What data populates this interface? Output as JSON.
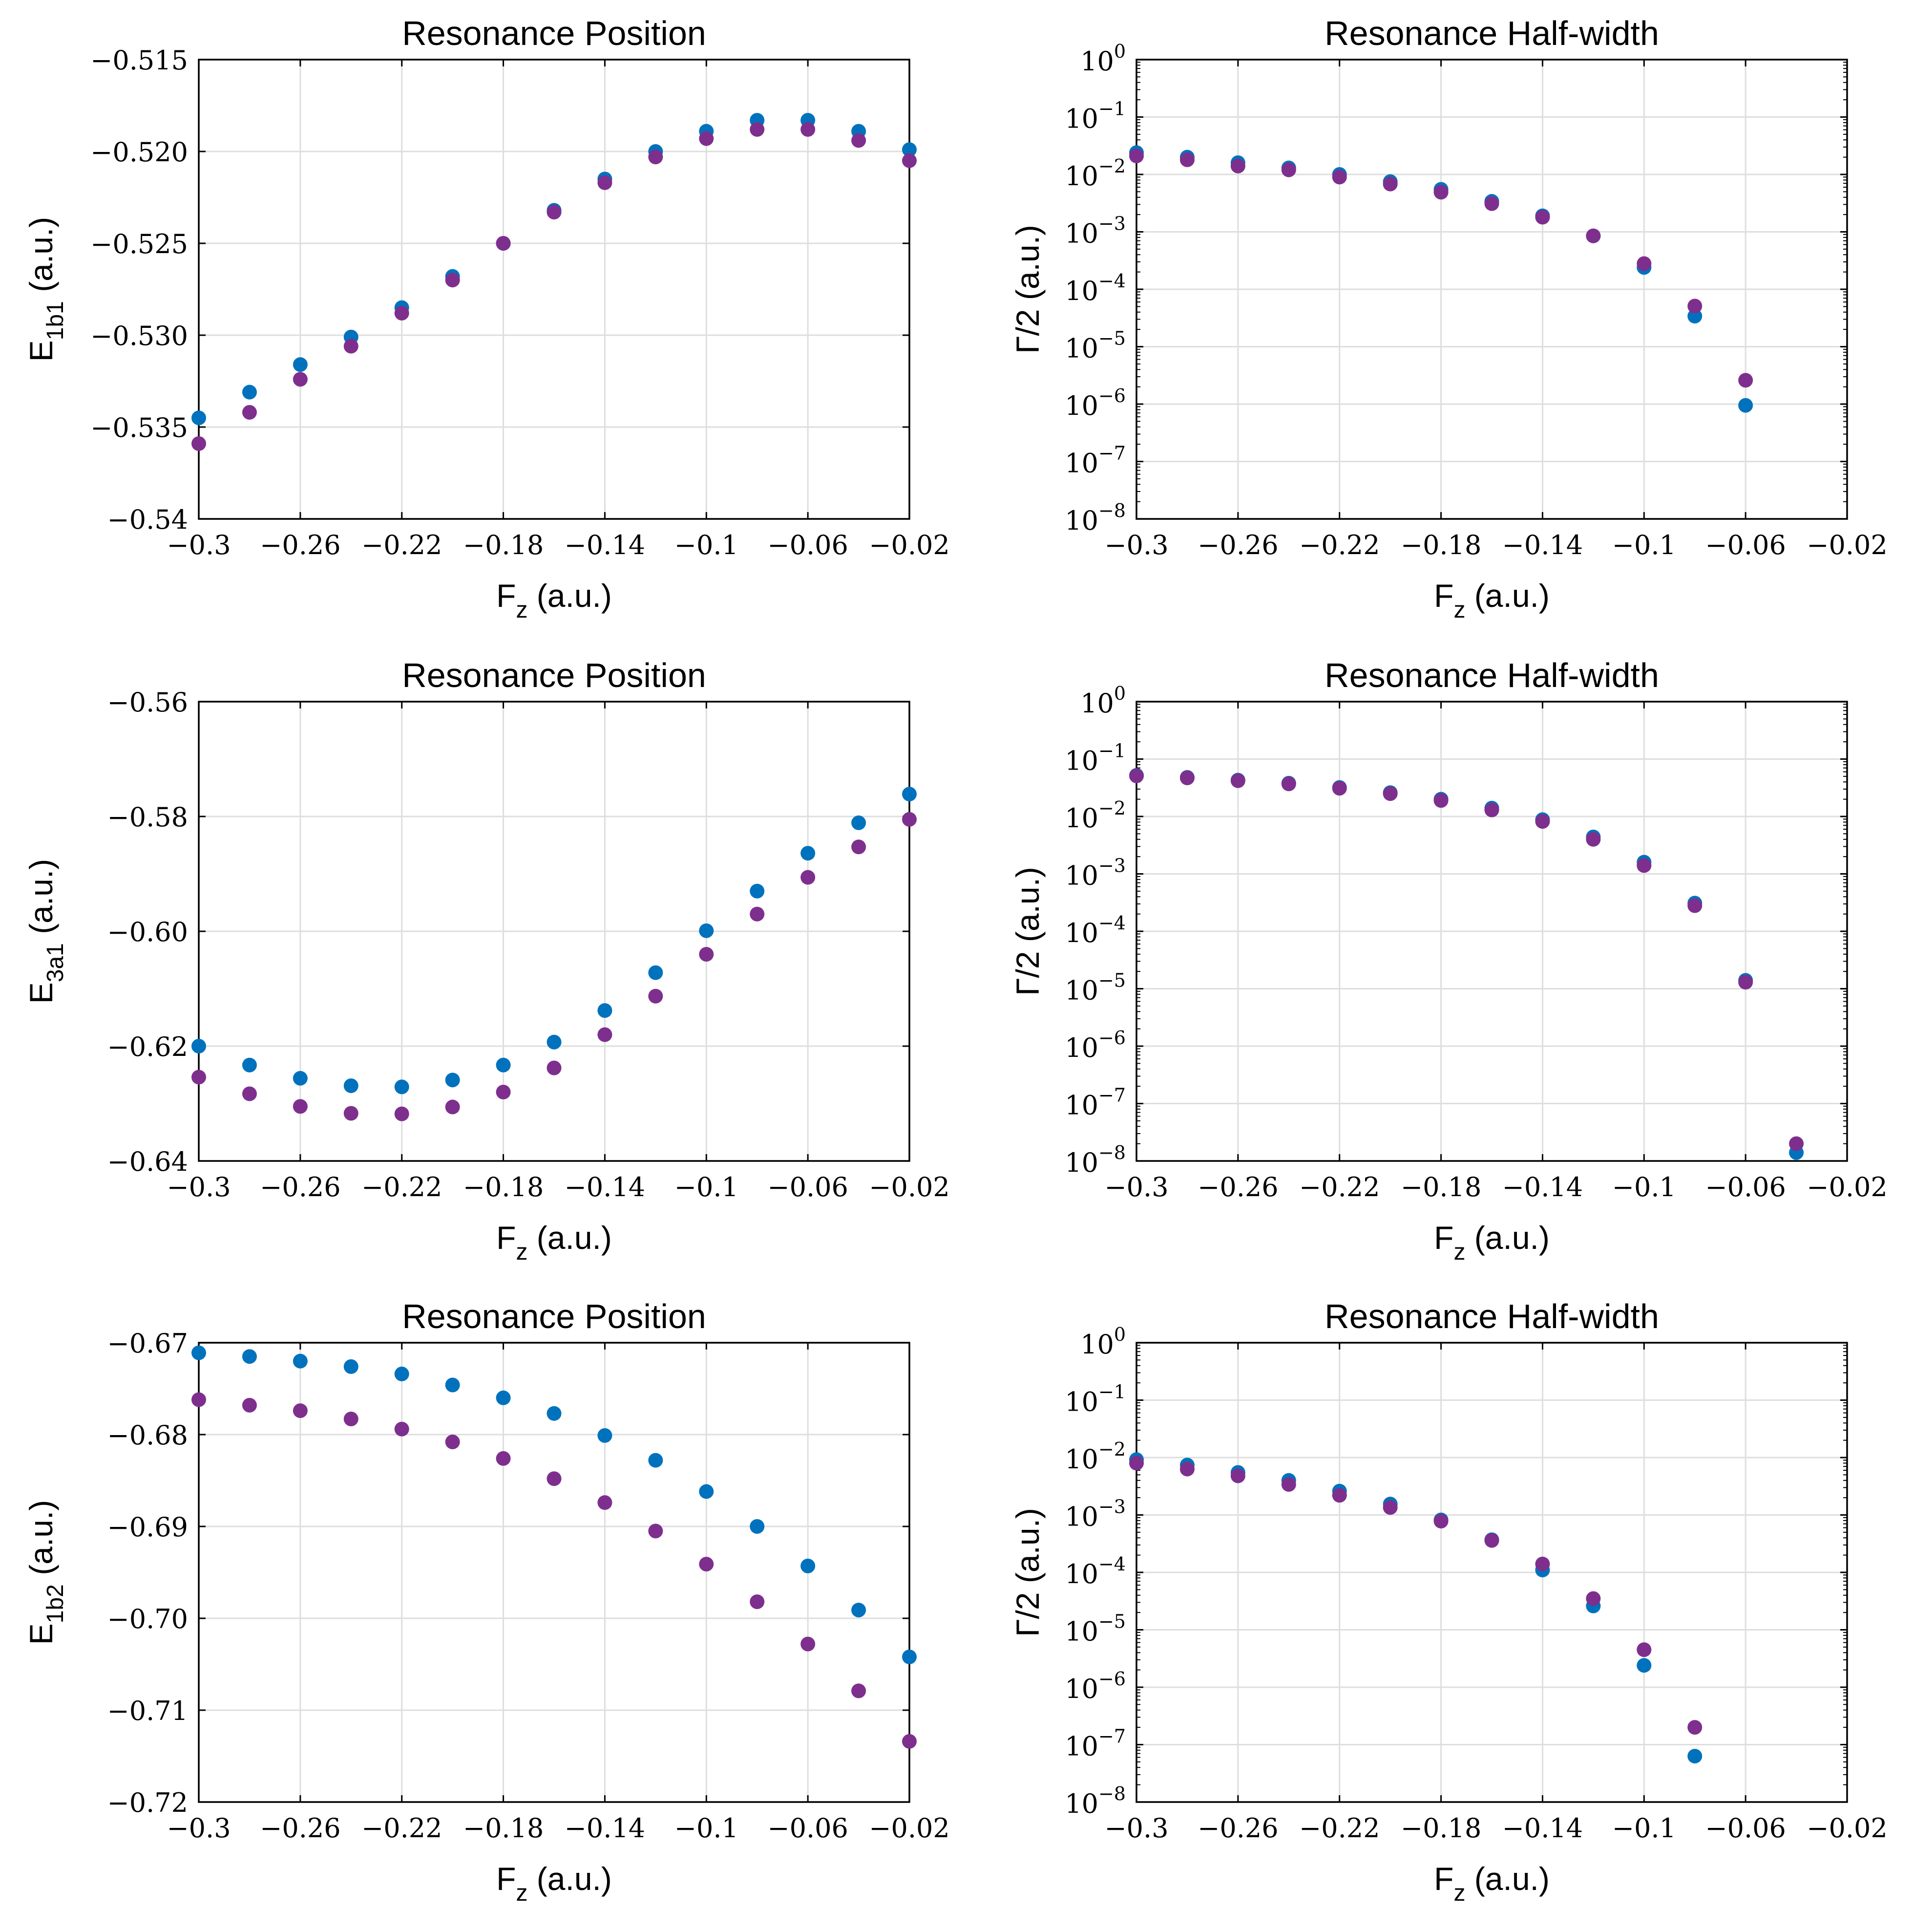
{
  "colors": {
    "series_a": "#0072bd",
    "series_b": "#7e2f8e",
    "grid": "#dedede"
  },
  "chart_data": [
    {
      "type": "scatter",
      "scale": "linear",
      "title": "Resonance Position",
      "xlabel": "F",
      "xlabel_sub": "z",
      "xlabel_tail": " (a.u.)",
      "ylabel": "E",
      "ylabel_sub": "1b1",
      "ylabel_tail": " (a.u.)",
      "xlim": [
        -0.3,
        -0.02
      ],
      "ylim": [
        -0.54,
        -0.515
      ],
      "xticks": [
        -0.3,
        -0.26,
        -0.22,
        -0.18,
        -0.14,
        -0.1,
        -0.06,
        -0.02
      ],
      "xtick_labels": [
        "−0.3",
        "−0.26",
        "−0.22",
        "−0.18",
        "−0.14",
        "−0.1",
        "−0.06",
        "−0.02"
      ],
      "yticks": [
        -0.54,
        -0.535,
        -0.53,
        -0.525,
        -0.52,
        -0.515
      ],
      "ytick_labels": [
        "−0.54",
        "−0.535",
        "−0.530",
        "−0.525",
        "−0.520",
        "−0.515"
      ],
      "x": [
        -0.3,
        -0.28,
        -0.26,
        -0.24,
        -0.22,
        -0.2,
        -0.18,
        -0.16,
        -0.14,
        -0.12,
        -0.1,
        -0.08,
        -0.06,
        -0.04,
        -0.02
      ],
      "series": [
        {
          "name": "blue",
          "values": [
            -0.5345,
            -0.5331,
            -0.5316,
            -0.5301,
            -0.5285,
            -0.5268,
            -0.525,
            -0.5232,
            -0.5215,
            -0.52,
            -0.5189,
            -0.5183,
            -0.5183,
            -0.5189,
            -0.5199
          ]
        },
        {
          "name": "purple",
          "values": [
            -0.5359,
            -0.5342,
            -0.5324,
            -0.5306,
            -0.5288,
            -0.527,
            -0.525,
            -0.5233,
            -0.5217,
            -0.5203,
            -0.5193,
            -0.5188,
            -0.5188,
            -0.5194,
            -0.5205
          ]
        }
      ]
    },
    {
      "type": "scatter",
      "scale": "log",
      "title": "Resonance Half-width",
      "xlabel": "F",
      "xlabel_sub": "z",
      "xlabel_tail": " (a.u.)",
      "ylabel": "Γ/2 (a.u.)",
      "xlim": [
        -0.3,
        -0.02
      ],
      "ylim_exp": [
        -8,
        0
      ],
      "xticks": [
        -0.3,
        -0.26,
        -0.22,
        -0.18,
        -0.14,
        -0.1,
        -0.06,
        -0.02
      ],
      "xtick_labels": [
        "−0.3",
        "−0.26",
        "−0.22",
        "−0.18",
        "−0.14",
        "−0.1",
        "−0.06",
        "−0.02"
      ],
      "ytick_exps": [
        "−8",
        "−7",
        "−6",
        "−5",
        "−4",
        "−3",
        "−2",
        "−1",
        "0"
      ],
      "ytick_base": "10",
      "x": [
        -0.3,
        -0.28,
        -0.26,
        -0.24,
        -0.22,
        -0.2,
        -0.18,
        -0.16,
        -0.14,
        -0.12,
        -0.1,
        -0.08,
        -0.06
      ],
      "series": [
        {
          "name": "blue",
          "values": [
            0.024,
            0.02,
            0.016,
            0.013,
            0.01,
            0.0075,
            0.0055,
            0.0034,
            0.0019,
            0.00085,
            0.00024,
            3.4e-05,
            9.5e-07
          ]
        },
        {
          "name": "purple",
          "values": [
            0.021,
            0.018,
            0.014,
            0.012,
            0.009,
            0.0068,
            0.0049,
            0.0031,
            0.0018,
            0.00085,
            0.00028,
            5.1e-05,
            2.6e-06
          ]
        }
      ]
    },
    {
      "type": "scatter",
      "scale": "linear",
      "title": "Resonance Position",
      "xlabel": "F",
      "xlabel_sub": "z",
      "xlabel_tail": " (a.u.)",
      "ylabel": "E",
      "ylabel_sub": "3a1",
      "ylabel_tail": " (a.u.)",
      "xlim": [
        -0.3,
        -0.02
      ],
      "ylim": [
        -0.64,
        -0.56
      ],
      "xticks": [
        -0.3,
        -0.26,
        -0.22,
        -0.18,
        -0.14,
        -0.1,
        -0.06,
        -0.02
      ],
      "xtick_labels": [
        "−0.3",
        "−0.26",
        "−0.22",
        "−0.18",
        "−0.14",
        "−0.1",
        "−0.06",
        "−0.02"
      ],
      "yticks": [
        -0.64,
        -0.62,
        -0.6,
        -0.58,
        -0.56
      ],
      "ytick_labels": [
        "−0.64",
        "−0.62",
        "−0.60",
        "−0.58",
        "−0.56"
      ],
      "x": [
        -0.3,
        -0.28,
        -0.26,
        -0.24,
        -0.22,
        -0.2,
        -0.18,
        -0.16,
        -0.14,
        -0.12,
        -0.1,
        -0.08,
        -0.06,
        -0.04,
        -0.02
      ],
      "series": [
        {
          "name": "blue",
          "values": [
            -0.62,
            -0.6233,
            -0.6256,
            -0.6269,
            -0.6271,
            -0.6259,
            -0.6233,
            -0.6193,
            -0.6138,
            -0.6072,
            -0.5999,
            -0.593,
            -0.5864,
            -0.5811,
            -0.5761
          ]
        },
        {
          "name": "purple",
          "values": [
            -0.6254,
            -0.6283,
            -0.6305,
            -0.6317,
            -0.6318,
            -0.6306,
            -0.628,
            -0.6238,
            -0.618,
            -0.6113,
            -0.604,
            -0.597,
            -0.5906,
            -0.5853,
            -0.5805
          ]
        }
      ]
    },
    {
      "type": "scatter",
      "scale": "log",
      "title": "Resonance Half-width",
      "xlabel": "F",
      "xlabel_sub": "z",
      "xlabel_tail": " (a.u.)",
      "ylabel": "Γ/2 (a.u.)",
      "xlim": [
        -0.3,
        -0.02
      ],
      "ylim_exp": [
        -8,
        0
      ],
      "xticks": [
        -0.3,
        -0.26,
        -0.22,
        -0.18,
        -0.14,
        -0.1,
        -0.06,
        -0.02
      ],
      "xtick_labels": [
        "−0.3",
        "−0.26",
        "−0.22",
        "−0.18",
        "−0.14",
        "−0.1",
        "−0.06",
        "−0.02"
      ],
      "ytick_exps": [
        "−8",
        "−7",
        "−6",
        "−5",
        "−4",
        "−3",
        "−2",
        "−1",
        "0"
      ],
      "ytick_base": "10",
      "x": [
        -0.3,
        -0.28,
        -0.26,
        -0.24,
        -0.22,
        -0.2,
        -0.18,
        -0.16,
        -0.14,
        -0.12,
        -0.1,
        -0.08,
        -0.06,
        -0.04
      ],
      "series": [
        {
          "name": "blue",
          "values": [
            0.052,
            0.048,
            0.043,
            0.038,
            0.032,
            0.026,
            0.02,
            0.014,
            0.0088,
            0.0044,
            0.0016,
            0.00031,
            1.4e-05,
            1.4e-08
          ]
        },
        {
          "name": "purple",
          "values": [
            0.051,
            0.047,
            0.042,
            0.037,
            0.031,
            0.025,
            0.019,
            0.013,
            0.0082,
            0.004,
            0.0014,
            0.00028,
            1.3e-05,
            2e-08
          ]
        }
      ]
    },
    {
      "type": "scatter",
      "scale": "linear",
      "title": "Resonance Position",
      "xlabel": "F",
      "xlabel_sub": "z",
      "xlabel_tail": " (a.u.)",
      "ylabel": "E",
      "ylabel_sub": "1b2",
      "ylabel_tail": " (a.u.)",
      "xlim": [
        -0.3,
        -0.02
      ],
      "ylim": [
        -0.72,
        -0.67
      ],
      "xticks": [
        -0.3,
        -0.26,
        -0.22,
        -0.18,
        -0.14,
        -0.1,
        -0.06,
        -0.02
      ],
      "xtick_labels": [
        "−0.3",
        "−0.26",
        "−0.22",
        "−0.18",
        "−0.14",
        "−0.1",
        "−0.06",
        "−0.02"
      ],
      "yticks": [
        -0.72,
        -0.71,
        -0.7,
        -0.69,
        -0.68,
        -0.67
      ],
      "ytick_labels": [
        "−0.72",
        "−0.71",
        "−0.70",
        "−0.69",
        "−0.68",
        "−0.67"
      ],
      "x": [
        -0.3,
        -0.28,
        -0.26,
        -0.24,
        -0.22,
        -0.2,
        -0.18,
        -0.16,
        -0.14,
        -0.12,
        -0.1,
        -0.08,
        -0.06,
        -0.04,
        -0.02
      ],
      "series": [
        {
          "name": "blue",
          "values": [
            -0.6711,
            -0.6715,
            -0.672,
            -0.6726,
            -0.6734,
            -0.6746,
            -0.676,
            -0.6777,
            -0.6801,
            -0.6828,
            -0.6862,
            -0.69,
            -0.6943,
            -0.6991,
            -0.7042
          ]
        },
        {
          "name": "purple",
          "values": [
            -0.6762,
            -0.6768,
            -0.6774,
            -0.6783,
            -0.6794,
            -0.6808,
            -0.6826,
            -0.6848,
            -0.6874,
            -0.6905,
            -0.6941,
            -0.6982,
            -0.7028,
            -0.7079,
            -0.7134
          ]
        }
      ]
    },
    {
      "type": "scatter",
      "scale": "log",
      "title": "Resonance Half-width",
      "xlabel": "F",
      "xlabel_sub": "z",
      "xlabel_tail": " (a.u.)",
      "ylabel": "Γ/2 (a.u.)",
      "xlim": [
        -0.3,
        -0.02
      ],
      "ylim_exp": [
        -8,
        0
      ],
      "xticks": [
        -0.3,
        -0.26,
        -0.22,
        -0.18,
        -0.14,
        -0.1,
        -0.06,
        -0.02
      ],
      "xtick_labels": [
        "−0.3",
        "−0.26",
        "−0.22",
        "−0.18",
        "−0.14",
        "−0.1",
        "−0.06",
        "−0.02"
      ],
      "ytick_exps": [
        "−8",
        "−7",
        "−6",
        "−5",
        "−4",
        "−3",
        "−2",
        "−1",
        "0"
      ],
      "ytick_base": "10",
      "x": [
        -0.3,
        -0.28,
        -0.26,
        -0.24,
        -0.22,
        -0.2,
        -0.18,
        -0.16,
        -0.14,
        -0.12,
        -0.1,
        -0.08
      ],
      "series": [
        {
          "name": "blue",
          "values": [
            0.0092,
            0.0074,
            0.0055,
            0.004,
            0.0026,
            0.00155,
            0.00082,
            0.00037,
            0.00011,
            2.6e-05,
            2.4e-06,
            6.3e-08
          ]
        },
        {
          "name": "purple",
          "values": [
            0.008,
            0.0063,
            0.0048,
            0.0034,
            0.0022,
            0.00135,
            0.00078,
            0.00036,
            0.00014,
            3.5e-05,
            4.5e-06,
            2e-07
          ]
        }
      ]
    }
  ]
}
